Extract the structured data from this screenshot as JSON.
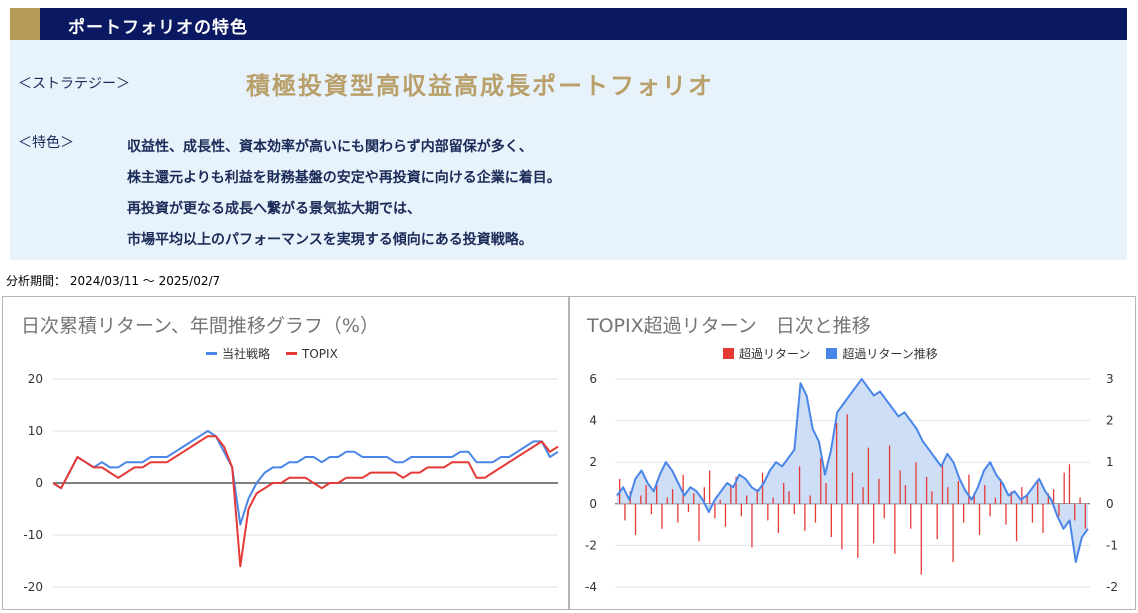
{
  "panel": {
    "header_title": "ポートフォリオの特色",
    "strategy_label": "＜ストラテジー＞",
    "strategy_name": "積極投資型高収益高成長ポートフォリオ",
    "feature_label": "＜特色＞",
    "feature_lines": [
      "収益性、成長性、資本効率が高いにも関わらず内部留保が多く、",
      "株主還元よりも利益を財務基盤の安定や再投資に向ける企業に着目。",
      "再投資が更なる成長へ繋がる景気拡大期では、",
      "市場平均以上のパフォーマンスを実現する傾向にある投資戦略。"
    ]
  },
  "period_text": "分析期間： 2024/03/11 ～ 2025/02/7",
  "colors": {
    "header_bg": "#0b1862",
    "accent_gold": "#b59a5a",
    "strategy_gold": "#b9a06a",
    "panel_bg": "#e8f2fb",
    "blue": "#4a86e8",
    "red": "#e53935",
    "fill_blue": "#c9daf6"
  },
  "chart_data": [
    {
      "type": "line",
      "title": "日次累積リターン、年間推移グラフ（%）",
      "legend_position": "top",
      "ylim": [
        -20,
        20
      ],
      "y_ticks": [
        "20",
        "10",
        "0",
        "-10",
        "-20"
      ],
      "series": [
        {
          "name": "当社戦略",
          "color": "#4a86e8",
          "values": [
            0,
            -1,
            2,
            5,
            4,
            3,
            4,
            3,
            3,
            4,
            4,
            4,
            5,
            5,
            5,
            6,
            7,
            8,
            9,
            10,
            9,
            6,
            3,
            -8,
            -3,
            0,
            2,
            3,
            3,
            4,
            4,
            5,
            5,
            4,
            5,
            5,
            6,
            6,
            5,
            5,
            5,
            5,
            4,
            4,
            5,
            5,
            5,
            5,
            5,
            5,
            6,
            6,
            4,
            4,
            4,
            5,
            5,
            6,
            7,
            8,
            8,
            5,
            6
          ]
        },
        {
          "name": "TOPIX",
          "color": "#e53935",
          "values": [
            0,
            -1,
            2,
            5,
            4,
            3,
            3,
            2,
            1,
            2,
            3,
            3,
            4,
            4,
            4,
            5,
            6,
            7,
            8,
            9,
            9,
            7,
            3,
            -16,
            -5,
            -2,
            -1,
            0,
            0,
            1,
            1,
            1,
            0,
            -1,
            0,
            0,
            1,
            1,
            1,
            2,
            2,
            2,
            2,
            1,
            2,
            2,
            3,
            3,
            3,
            4,
            4,
            4,
            1,
            1,
            2,
            3,
            4,
            5,
            6,
            7,
            8,
            6,
            7
          ]
        }
      ]
    },
    {
      "type": "bar+area",
      "title": "TOPIX超過リターン　日次と推移",
      "legend_position": "top",
      "y_left_lim": [
        -4,
        6
      ],
      "y_right_lim": [
        -2,
        3
      ],
      "y_left_ticks": [
        "6",
        "4",
        "2",
        "0",
        "-2",
        "-4"
      ],
      "y_right_ticks": [
        "3",
        "2",
        "1",
        "0",
        "-1",
        "-2"
      ],
      "series": [
        {
          "name": "超過リターン",
          "color": "#e53935",
          "axis": "left",
          "values": [
            1.2,
            -0.8,
            0.6,
            -1.5,
            0.4,
            0.9,
            -0.5,
            1.1,
            -1.2,
            0.3,
            0.7,
            -0.9,
            1.4,
            -0.4,
            0.5,
            -1.8,
            0.8,
            1.6,
            -0.7,
            0.2,
            -1.1,
            0.9,
            1.3,
            -0.6,
            0.4,
            -2.1,
            0.7,
            1.5,
            -0.8,
            0.3,
            -1.4,
            1.0,
            0.6,
            -0.5,
            1.8,
            -1.3,
            0.4,
            -0.9,
            2.2,
            1.0,
            -1.6,
            3.9,
            -2.2,
            4.3,
            1.5,
            -2.6,
            0.8,
            2.7,
            -1.9,
            1.2,
            -0.7,
            2.8,
            -2.4,
            1.6,
            0.9,
            -1.2,
            2.0,
            -3.4,
            1.3,
            0.6,
            -1.7,
            1.9,
            0.8,
            -2.8,
            1.1,
            -0.9,
            1.4,
            0.5,
            -1.5,
            0.9,
            -0.6,
            0.3,
            1.2,
            -1.0,
            0.6,
            -1.8,
            0.8,
            0.4,
            -0.9,
            1.1,
            -1.4,
            0.5,
            0.7,
            -0.6,
            1.5,
            1.9,
            -0.8,
            0.3,
            -1.2
          ]
        },
        {
          "name": "超過リターン推移",
          "color": "#4a86e8",
          "axis": "right",
          "values": [
            0.2,
            0.4,
            0.1,
            0.6,
            0.8,
            0.5,
            0.3,
            0.7,
            1.0,
            0.8,
            0.5,
            0.2,
            0.4,
            0.3,
            0.1,
            -0.2,
            0.1,
            0.3,
            0.5,
            0.4,
            0.7,
            0.6,
            0.4,
            0.3,
            0.5,
            0.8,
            1.0,
            0.9,
            1.1,
            1.3,
            2.9,
            2.6,
            1.8,
            1.5,
            0.7,
            1.3,
            2.2,
            2.4,
            2.6,
            2.8,
            3.0,
            2.8,
            2.6,
            2.7,
            2.5,
            2.3,
            2.1,
            2.2,
            2.0,
            1.8,
            1.5,
            1.3,
            1.1,
            0.9,
            1.2,
            1.0,
            0.6,
            0.3,
            0.1,
            0.4,
            0.8,
            1.0,
            0.7,
            0.5,
            0.2,
            0.3,
            0.1,
            0.2,
            0.4,
            0.6,
            0.3,
            0.1,
            -0.3,
            -0.6,
            -0.4,
            -1.4,
            -0.8,
            -0.6
          ]
        }
      ]
    }
  ]
}
